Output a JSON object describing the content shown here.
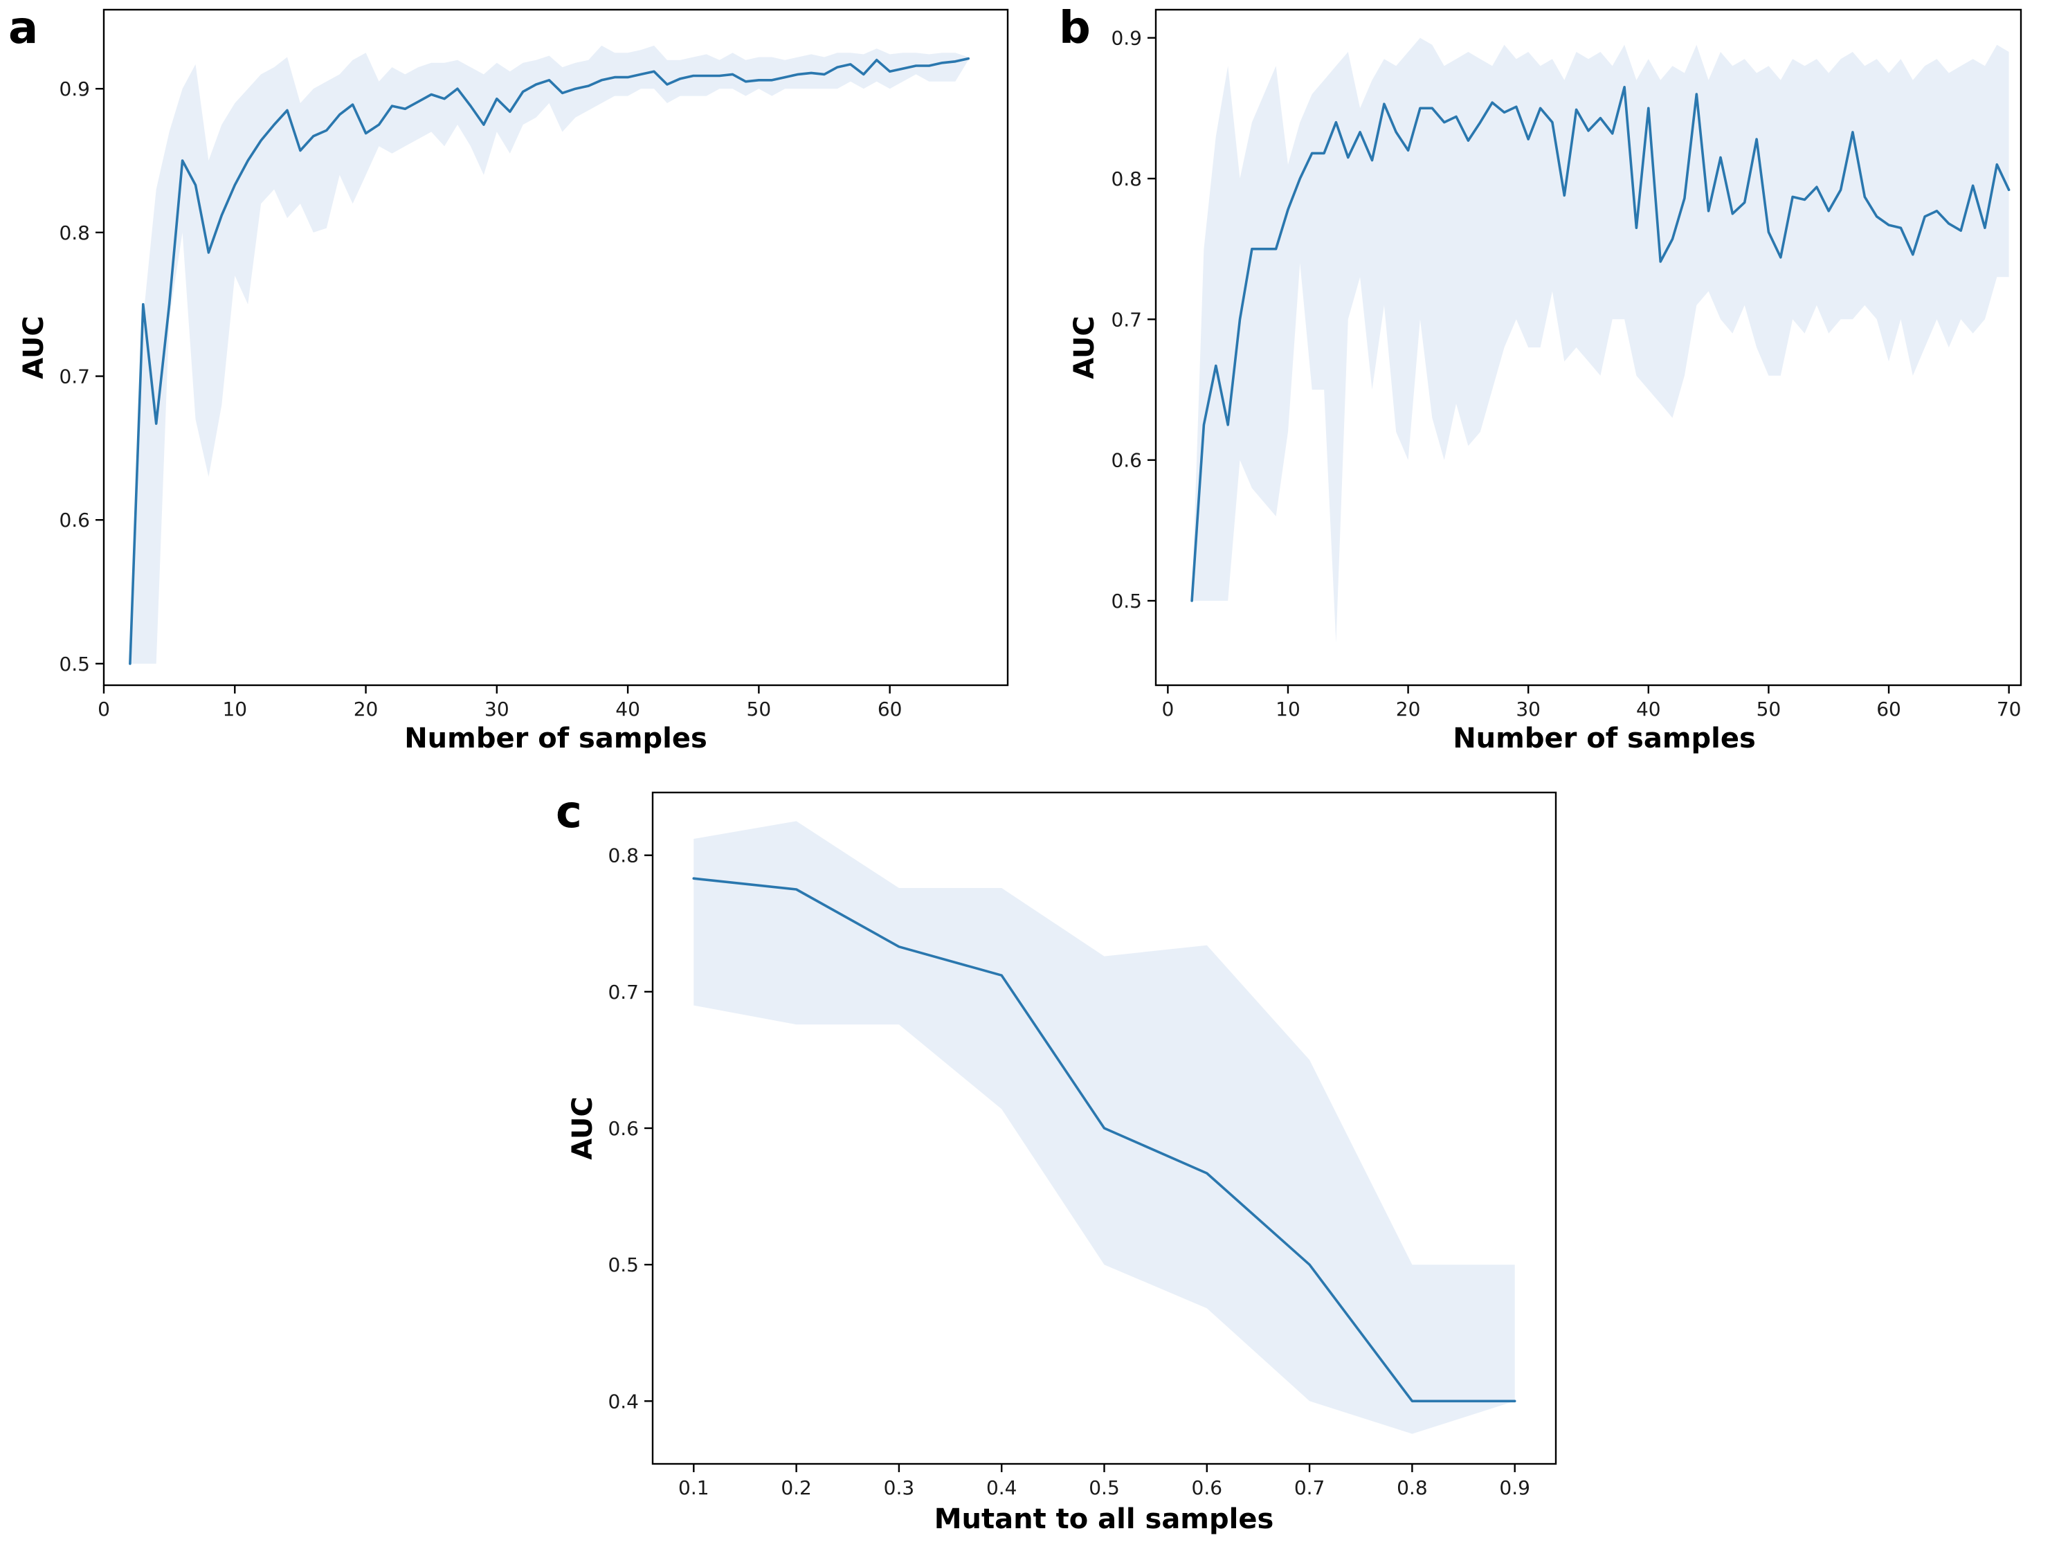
{
  "colors": {
    "line": "#2a77ae",
    "band": "#dbe7f4"
  },
  "chart_data": [
    {
      "panel": "a",
      "type": "line",
      "xlabel": "Number of samples",
      "ylabel": "AUC",
      "xlim": [
        0,
        69
      ],
      "ylim": [
        0.485,
        0.955
      ],
      "xticks": [
        0,
        10,
        20,
        30,
        40,
        50,
        60
      ],
      "yticks": [
        0.5,
        0.6,
        0.7,
        0.8,
        0.9
      ],
      "xtick_labels": [
        "0",
        "10",
        "20",
        "30",
        "40",
        "50",
        "60"
      ],
      "ytick_labels": [
        "0.5",
        "0.6",
        "0.7",
        "0.8",
        "0.9"
      ],
      "x": [
        2,
        3,
        4,
        5,
        6,
        7,
        8,
        9,
        10,
        11,
        12,
        13,
        14,
        15,
        16,
        17,
        18,
        19,
        20,
        21,
        22,
        23,
        24,
        25,
        26,
        27,
        28,
        29,
        30,
        31,
        32,
        33,
        34,
        35,
        36,
        37,
        38,
        39,
        40,
        41,
        42,
        43,
        44,
        45,
        46,
        47,
        48,
        49,
        50,
        51,
        52,
        53,
        54,
        55,
        56,
        57,
        58,
        59,
        60,
        61,
        62,
        63,
        64,
        65,
        66
      ],
      "y": [
        0.5,
        0.75,
        0.667,
        0.75,
        0.85,
        0.833,
        0.786,
        0.812,
        0.833,
        0.85,
        0.864,
        0.875,
        0.885,
        0.857,
        0.867,
        0.871,
        0.882,
        0.889,
        0.869,
        0.875,
        0.888,
        0.886,
        0.891,
        0.896,
        0.893,
        0.9,
        0.888,
        0.875,
        0.893,
        0.884,
        0.898,
        0.903,
        0.906,
        0.897,
        0.9,
        0.902,
        0.906,
        0.908,
        0.908,
        0.91,
        0.912,
        0.903,
        0.907,
        0.909,
        0.909,
        0.909,
        0.91,
        0.905,
        0.906,
        0.906,
        0.908,
        0.91,
        0.911,
        0.91,
        0.915,
        0.917,
        0.91,
        0.92,
        0.912,
        0.914,
        0.916,
        0.916,
        0.918,
        0.919,
        0.921
      ],
      "lower": [
        0.5,
        0.5,
        0.5,
        0.74,
        0.8,
        0.67,
        0.63,
        0.68,
        0.77,
        0.75,
        0.82,
        0.83,
        0.81,
        0.82,
        0.8,
        0.803,
        0.84,
        0.82,
        0.84,
        0.86,
        0.855,
        0.86,
        0.865,
        0.87,
        0.86,
        0.875,
        0.86,
        0.84,
        0.87,
        0.855,
        0.875,
        0.88,
        0.89,
        0.87,
        0.88,
        0.885,
        0.89,
        0.895,
        0.895,
        0.9,
        0.9,
        0.89,
        0.895,
        0.895,
        0.895,
        0.9,
        0.9,
        0.895,
        0.9,
        0.895,
        0.9,
        0.9,
        0.9,
        0.9,
        0.9,
        0.905,
        0.9,
        0.905,
        0.9,
        0.905,
        0.91,
        0.905,
        0.905,
        0.905,
        0.92
      ],
      "upper": [
        0.5,
        0.74,
        0.83,
        0.87,
        0.9,
        0.917,
        0.85,
        0.875,
        0.89,
        0.9,
        0.91,
        0.915,
        0.922,
        0.89,
        0.9,
        0.905,
        0.91,
        0.92,
        0.925,
        0.905,
        0.915,
        0.91,
        0.915,
        0.918,
        0.918,
        0.92,
        0.915,
        0.91,
        0.918,
        0.912,
        0.918,
        0.92,
        0.923,
        0.915,
        0.918,
        0.92,
        0.93,
        0.925,
        0.925,
        0.927,
        0.93,
        0.92,
        0.92,
        0.922,
        0.924,
        0.92,
        0.925,
        0.92,
        0.922,
        0.922,
        0.92,
        0.922,
        0.924,
        0.922,
        0.925,
        0.925,
        0.924,
        0.928,
        0.924,
        0.925,
        0.925,
        0.924,
        0.925,
        0.925,
        0.922
      ]
    },
    {
      "panel": "b",
      "type": "line",
      "xlabel": "Number of samples",
      "ylabel": "AUC",
      "xlim": [
        -1,
        71
      ],
      "ylim": [
        0.44,
        0.92
      ],
      "xticks": [
        0,
        10,
        20,
        30,
        40,
        50,
        60,
        70
      ],
      "yticks": [
        0.5,
        0.6,
        0.7,
        0.8,
        0.9
      ],
      "xtick_labels": [
        "0",
        "10",
        "20",
        "30",
        "40",
        "50",
        "60",
        "70"
      ],
      "ytick_labels": [
        "0.5",
        "0.6",
        "0.7",
        "0.8",
        "0.9"
      ],
      "x": [
        2,
        3,
        4,
        5,
        6,
        7,
        8,
        9,
        10,
        11,
        12,
        13,
        14,
        15,
        16,
        17,
        18,
        19,
        20,
        21,
        22,
        23,
        24,
        25,
        26,
        27,
        28,
        29,
        30,
        31,
        32,
        33,
        34,
        35,
        36,
        37,
        38,
        39,
        40,
        41,
        42,
        43,
        44,
        45,
        46,
        47,
        48,
        49,
        50,
        51,
        52,
        53,
        54,
        55,
        56,
        57,
        58,
        59,
        60,
        61,
        62,
        63,
        64,
        65,
        66,
        67,
        68,
        69,
        70
      ],
      "y": [
        0.5,
        0.625,
        0.667,
        0.625,
        0.7,
        0.75,
        0.75,
        0.75,
        0.778,
        0.8,
        0.818,
        0.818,
        0.84,
        0.815,
        0.833,
        0.813,
        0.853,
        0.833,
        0.82,
        0.85,
        0.85,
        0.84,
        0.844,
        0.827,
        0.84,
        0.854,
        0.847,
        0.851,
        0.828,
        0.85,
        0.84,
        0.788,
        0.849,
        0.834,
        0.843,
        0.832,
        0.865,
        0.765,
        0.85,
        0.741,
        0.757,
        0.786,
        0.86,
        0.777,
        0.815,
        0.775,
        0.783,
        0.828,
        0.762,
        0.744,
        0.787,
        0.785,
        0.794,
        0.777,
        0.792,
        0.833,
        0.787,
        0.773,
        0.767,
        0.765,
        0.746,
        0.773,
        0.777,
        0.768,
        0.763,
        0.795,
        0.765,
        0.81,
        0.792
      ],
      "lower": [
        0.5,
        0.5,
        0.5,
        0.5,
        0.6,
        0.58,
        0.57,
        0.56,
        0.62,
        0.74,
        0.65,
        0.65,
        0.47,
        0.7,
        0.73,
        0.65,
        0.71,
        0.62,
        0.6,
        0.7,
        0.63,
        0.6,
        0.64,
        0.61,
        0.62,
        0.65,
        0.68,
        0.7,
        0.68,
        0.68,
        0.72,
        0.67,
        0.68,
        0.67,
        0.66,
        0.7,
        0.7,
        0.66,
        0.65,
        0.64,
        0.63,
        0.66,
        0.71,
        0.72,
        0.7,
        0.69,
        0.71,
        0.68,
        0.66,
        0.66,
        0.7,
        0.69,
        0.71,
        0.69,
        0.7,
        0.7,
        0.71,
        0.7,
        0.67,
        0.7,
        0.66,
        0.68,
        0.7,
        0.68,
        0.7,
        0.69,
        0.7,
        0.73,
        0.73
      ],
      "upper": [
        0.5,
        0.75,
        0.83,
        0.88,
        0.8,
        0.84,
        0.86,
        0.88,
        0.81,
        0.84,
        0.86,
        0.87,
        0.88,
        0.89,
        0.85,
        0.87,
        0.885,
        0.88,
        0.89,
        0.9,
        0.895,
        0.88,
        0.885,
        0.89,
        0.885,
        0.88,
        0.895,
        0.885,
        0.89,
        0.88,
        0.885,
        0.87,
        0.89,
        0.885,
        0.89,
        0.88,
        0.895,
        0.87,
        0.885,
        0.87,
        0.88,
        0.875,
        0.895,
        0.87,
        0.89,
        0.88,
        0.885,
        0.875,
        0.88,
        0.87,
        0.885,
        0.88,
        0.885,
        0.875,
        0.885,
        0.89,
        0.88,
        0.885,
        0.875,
        0.885,
        0.87,
        0.88,
        0.885,
        0.875,
        0.88,
        0.885,
        0.88,
        0.895,
        0.89
      ]
    },
    {
      "panel": "c",
      "type": "line",
      "xlabel": "Mutant to all samples",
      "ylabel": "AUC",
      "xlim": [
        0.06,
        0.94
      ],
      "ylim": [
        0.354,
        0.846
      ],
      "xticks": [
        0.1,
        0.2,
        0.3,
        0.4,
        0.5,
        0.6,
        0.7,
        0.8,
        0.9
      ],
      "yticks": [
        0.4,
        0.5,
        0.6,
        0.7,
        0.8
      ],
      "xtick_labels": [
        "0.1",
        "0.2",
        "0.3",
        "0.4",
        "0.5",
        "0.6",
        "0.7",
        "0.8",
        "0.9"
      ],
      "ytick_labels": [
        "0.4",
        "0.5",
        "0.6",
        "0.7",
        "0.8"
      ],
      "x": [
        0.1,
        0.2,
        0.3,
        0.4,
        0.5,
        0.6,
        0.7,
        0.8,
        0.9
      ],
      "y": [
        0.783,
        0.775,
        0.733,
        0.712,
        0.6,
        0.567,
        0.5,
        0.4,
        0.4
      ],
      "lower": [
        0.69,
        0.676,
        0.676,
        0.614,
        0.5,
        0.468,
        0.4,
        0.376,
        0.4
      ],
      "upper": [
        0.812,
        0.825,
        0.776,
        0.776,
        0.726,
        0.734,
        0.65,
        0.5,
        0.5
      ]
    }
  ]
}
